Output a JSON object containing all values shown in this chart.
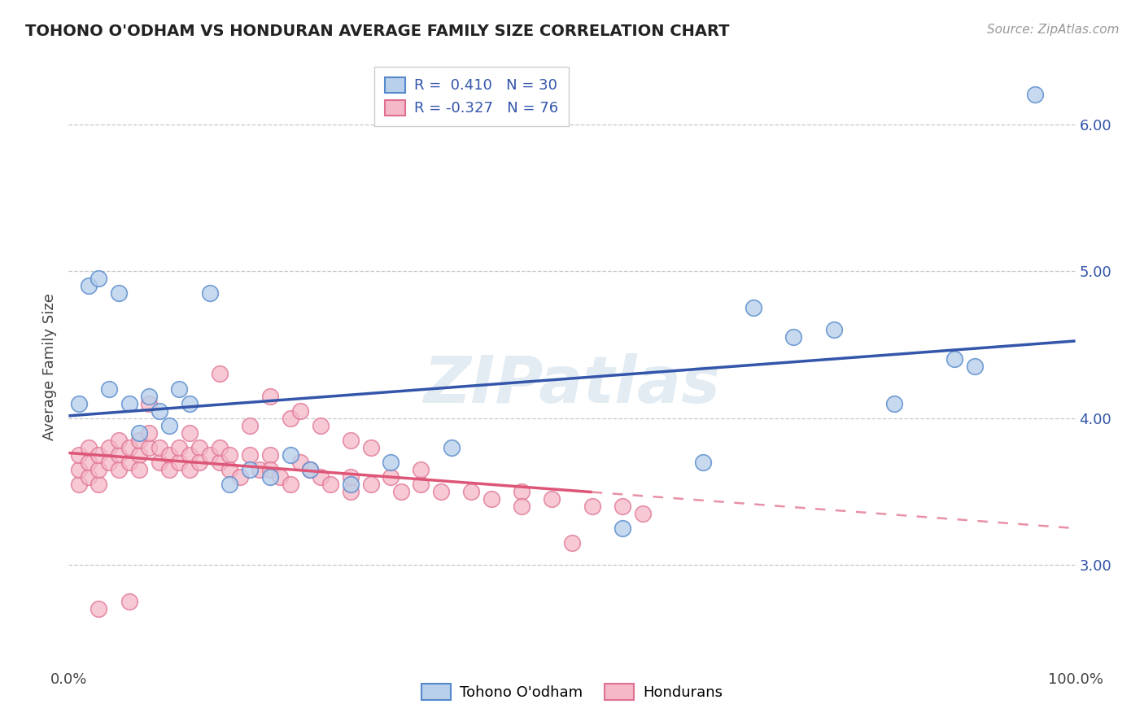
{
  "title": "TOHONO O'ODHAM VS HONDURAN AVERAGE FAMILY SIZE CORRELATION CHART",
  "source": "Source: ZipAtlas.com",
  "ylabel": "Average Family Size",
  "legend_labels": [
    "Tohono O'odham",
    "Hondurans"
  ],
  "r_blue": 0.41,
  "n_blue": 30,
  "r_pink": -0.327,
  "n_pink": 76,
  "blue_fill": "#b8d0ea",
  "pink_fill": "#f4b8c8",
  "blue_edge": "#5588cc",
  "pink_edge": "#e07090",
  "blue_line": "#3355aa",
  "pink_line": "#dd5577",
  "bg_color": "#ffffff",
  "grid_color": "#bbbbbb",
  "xlim": [
    0,
    100
  ],
  "ylim": [
    2.3,
    6.4
  ],
  "yticks_right": [
    3.0,
    4.0,
    5.0,
    6.0
  ],
  "blue_x": [
    1,
    2,
    3,
    4,
    5,
    6,
    7,
    8,
    9,
    10,
    11,
    12,
    14,
    16,
    18,
    20,
    22,
    24,
    28,
    32,
    38,
    55,
    63,
    68,
    72,
    76,
    82,
    88,
    90,
    96
  ],
  "blue_y": [
    4.1,
    4.9,
    4.95,
    4.2,
    4.85,
    4.1,
    3.9,
    4.15,
    4.05,
    3.95,
    4.2,
    4.1,
    4.85,
    3.55,
    3.65,
    3.6,
    3.75,
    3.65,
    3.55,
    3.7,
    3.8,
    3.25,
    3.7,
    4.75,
    4.55,
    4.6,
    4.1,
    4.4,
    4.35,
    6.2
  ],
  "pink_x": [
    1,
    1,
    1,
    2,
    2,
    2,
    3,
    3,
    3,
    4,
    4,
    5,
    5,
    5,
    6,
    6,
    7,
    7,
    7,
    8,
    8,
    9,
    9,
    10,
    10,
    11,
    11,
    12,
    12,
    13,
    13,
    14,
    15,
    15,
    16,
    16,
    17,
    18,
    19,
    20,
    20,
    21,
    22,
    23,
    24,
    25,
    26,
    28,
    28,
    30,
    32,
    33,
    35,
    37,
    40,
    42,
    45,
    45,
    48,
    50,
    52,
    55,
    57,
    15,
    20,
    22,
    25,
    28,
    30,
    35,
    8,
    12,
    18,
    23,
    3,
    6
  ],
  "pink_y": [
    3.55,
    3.65,
    3.75,
    3.6,
    3.7,
    3.8,
    3.55,
    3.65,
    3.75,
    3.8,
    3.7,
    3.75,
    3.65,
    3.85,
    3.7,
    3.8,
    3.75,
    3.85,
    3.65,
    3.8,
    3.9,
    3.7,
    3.8,
    3.75,
    3.65,
    3.7,
    3.8,
    3.75,
    3.65,
    3.8,
    3.7,
    3.75,
    3.7,
    3.8,
    3.75,
    3.65,
    3.6,
    3.75,
    3.65,
    3.75,
    3.65,
    3.6,
    3.55,
    3.7,
    3.65,
    3.6,
    3.55,
    3.5,
    3.6,
    3.55,
    3.6,
    3.5,
    3.55,
    3.5,
    3.5,
    3.45,
    3.5,
    3.4,
    3.45,
    3.15,
    3.4,
    3.4,
    3.35,
    4.3,
    4.15,
    4.0,
    3.95,
    3.85,
    3.8,
    3.65,
    4.1,
    3.9,
    3.95,
    4.05,
    2.7,
    2.75
  ],
  "pink_solid_end": 52,
  "watermark": "ZIPatlas"
}
